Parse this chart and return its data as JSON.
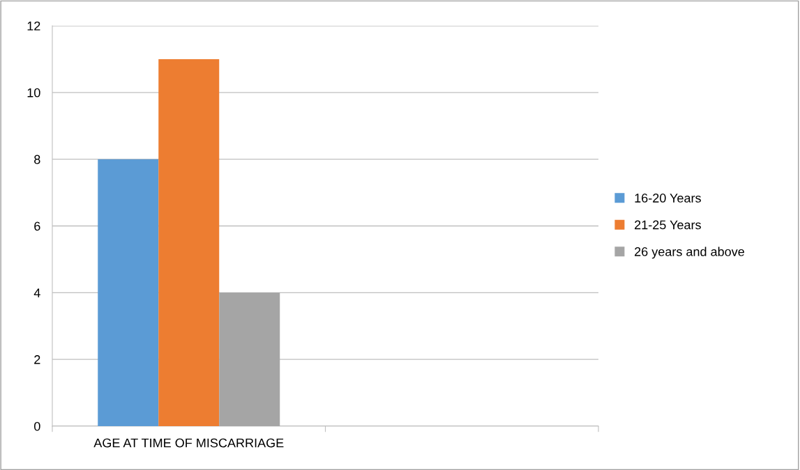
{
  "chart_data": {
    "type": "bar",
    "categories": [
      "AGE AT TIME OF MISCARRIAGE",
      null
    ],
    "series": [
      {
        "name": "16-20 Years",
        "color": "#5b9bd5",
        "values": [
          8,
          null
        ]
      },
      {
        "name": "21-25 Years",
        "color": "#ed7d31",
        "values": [
          11,
          null
        ]
      },
      {
        "name": "26 years and above",
        "color": "#a5a5a5",
        "values": [
          4,
          null
        ]
      }
    ],
    "ylim": [
      0,
      12
    ],
    "yticks": [
      0,
      2,
      4,
      6,
      8,
      10,
      12
    ],
    "grid": "y",
    "legend": "right"
  }
}
